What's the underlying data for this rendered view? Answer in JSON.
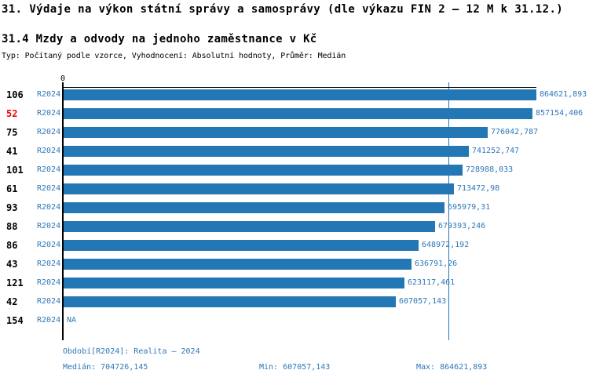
{
  "header": {
    "title": "31. Výdaje na výkon státní správy a samosprávy (dle výkazu FIN 2 – 12 M k 31.12.)",
    "subtitle": "31.4 Mzdy a odvody na jednoho zaměstnance v Kč",
    "meta": "Typ: Počítaný podle vzorce, Vyhodnocení: Absolutní hodnoty, Průměr: Medián"
  },
  "axis": {
    "zero_label": "0"
  },
  "rows": [
    {
      "id": "106",
      "period": "R2024",
      "value": 864621.893,
      "value_label": "864621,893",
      "highlight": false
    },
    {
      "id": "52",
      "period": "R2024",
      "value": 857154.406,
      "value_label": "857154,406",
      "highlight": true
    },
    {
      "id": "75",
      "period": "R2024",
      "value": 776042.787,
      "value_label": "776042,787",
      "highlight": false
    },
    {
      "id": "41",
      "period": "R2024",
      "value": 741252.747,
      "value_label": "741252,747",
      "highlight": false
    },
    {
      "id": "101",
      "period": "R2024",
      "value": 728988.033,
      "value_label": "728988,033",
      "highlight": false
    },
    {
      "id": "61",
      "period": "R2024",
      "value": 713472.98,
      "value_label": "713472,98",
      "highlight": false
    },
    {
      "id": "93",
      "period": "R2024",
      "value": 695979.31,
      "value_label": "695979,31",
      "highlight": false
    },
    {
      "id": "88",
      "period": "R2024",
      "value": 679393.246,
      "value_label": "679393,246",
      "highlight": false
    },
    {
      "id": "86",
      "period": "R2024",
      "value": 648972.192,
      "value_label": "648972,192",
      "highlight": false
    },
    {
      "id": "43",
      "period": "R2024",
      "value": 636791.26,
      "value_label": "636791,26",
      "highlight": false
    },
    {
      "id": "121",
      "period": "R2024",
      "value": 623117.461,
      "value_label": "623117,461",
      "highlight": false
    },
    {
      "id": "42",
      "period": "R2024",
      "value": 607057.143,
      "value_label": "607057,143",
      "highlight": false
    },
    {
      "id": "154",
      "period": "R2024",
      "value": null,
      "value_label": "NA",
      "highlight": false
    }
  ],
  "footer": {
    "period": "Období[R2024]: Realita – 2024",
    "median": "Medián: 704726,145",
    "min": "Min: 607057,143",
    "max": "Max: 864621,893"
  },
  "colors": {
    "bar": "#2377B4",
    "blue_text": "#2E78B9",
    "highlight_id": "#EE0000",
    "id_text": "#000000",
    "axis": "#000000",
    "median_line": "#2377B4"
  },
  "chart_data": {
    "type": "bar",
    "orientation": "horizontal",
    "title": "31. Výdaje na výkon státní správy a samosprávy (dle výkazu FIN 2 – 12 M k 31.12.)",
    "subtitle": "31.4 Mzdy a odvody na jednoho zaměstnance v Kč",
    "categories": [
      "106",
      "52",
      "75",
      "41",
      "101",
      "61",
      "93",
      "88",
      "86",
      "43",
      "121",
      "42",
      "154"
    ],
    "series": [
      {
        "name": "R2024",
        "values": [
          864621.893,
          857154.406,
          776042.787,
          741252.747,
          728988.033,
          713472.98,
          695979.31,
          679393.246,
          648972.192,
          636791.26,
          623117.461,
          607057.143,
          null
        ]
      }
    ],
    "value_labels": [
      "864621,893",
      "857154,406",
      "776042,787",
      "741252,747",
      "728988,033",
      "713472,98",
      "695979,31",
      "679393,246",
      "648972,192",
      "636791,26",
      "623117,461",
      "607057,143",
      "NA"
    ],
    "xlim": [
      0,
      864621.893
    ],
    "xlabel": "",
    "ylabel": "",
    "grid": false,
    "legend_position": "none",
    "sorted": "descending",
    "highlighted_category": "52",
    "median": 704726.145,
    "min": 607057.143,
    "max": 864621.893
  }
}
